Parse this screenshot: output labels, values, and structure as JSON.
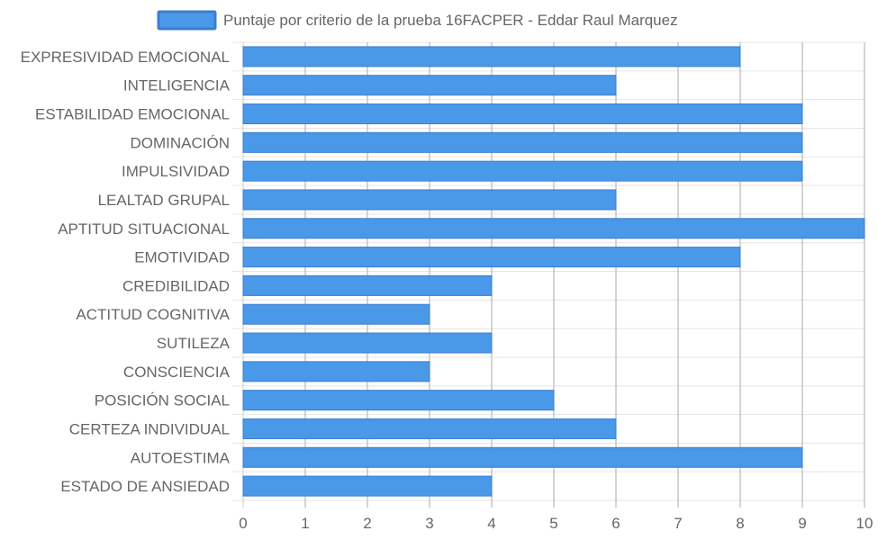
{
  "chart_data": {
    "type": "bar",
    "orientation": "horizontal",
    "categories": [
      "EXPRESIVIDAD EMOCIONAL",
      "INTELIGENCIA",
      "ESTABILIDAD EMOCIONAL",
      "DOMINACIÓN",
      "IMPULSIVIDAD",
      "LEALTAD GRUPAL",
      "APTITUD SITUACIONAL",
      "EMOTIVIDAD",
      "CREDIBILIDAD",
      "ACTITUD COGNITIVA",
      "SUTILEZA",
      "CONSCIENCIA",
      "POSICIÓN SOCIAL",
      "CERTEZA INDIVIDUAL",
      "AUTOESTIMA",
      "ESTADO DE ANSIEDAD"
    ],
    "series": [
      {
        "name": "Puntaje por criterio de la prueba 16FACPER - Eddar Raul Marquez",
        "values": [
          8,
          6,
          9,
          9,
          9,
          6,
          10,
          8,
          4,
          3,
          4,
          3,
          5,
          6,
          9,
          4
        ]
      }
    ],
    "xlim": [
      0,
      10
    ],
    "xticks": [
      "0",
      "1",
      "2",
      "3",
      "4",
      "5",
      "6",
      "7",
      "8",
      "9",
      "10"
    ],
    "grid": true,
    "legend_position": "top",
    "colors": {
      "bar_fill": "#4a98e8",
      "bar_border": "#3a7fd0",
      "grid": "#e5e5e5",
      "grid_vertical": "#aaaaaa",
      "text": "#666666"
    }
  }
}
